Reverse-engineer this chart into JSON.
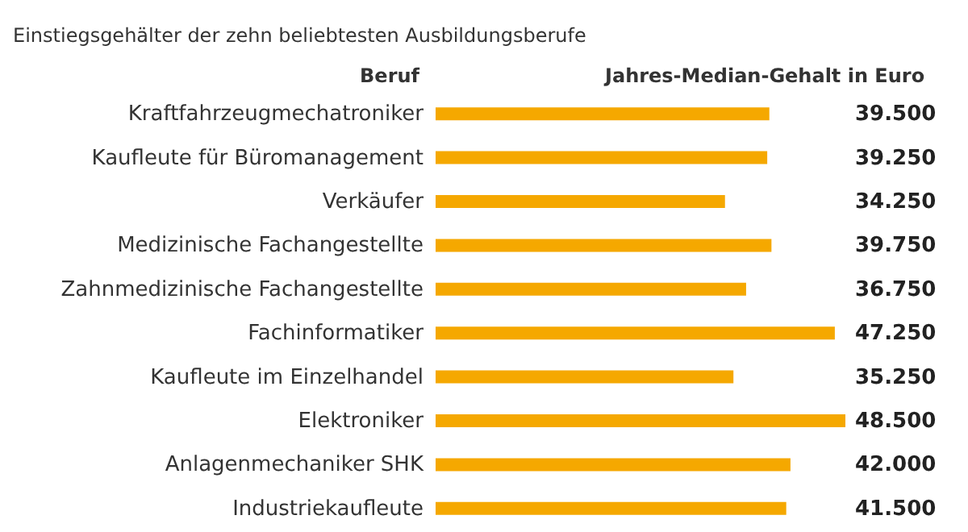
{
  "chart_data": {
    "type": "bar",
    "orientation": "horizontal",
    "subtitle": "Einstiegsgehälter der zehn beliebtesten Ausbildungsberufe",
    "ylabel": "Beruf",
    "xlabel": "Jahres-Median-Gehalt in Euro",
    "categories": [
      "Kraftfahrzeugmechatroniker",
      "Kaufleute für Büromanagement",
      "Verkäufer",
      "Medizinische Fachangestellte",
      "Zahnmedizinische Fachangestellte",
      "Fachinformatiker",
      "Kaufleute im Einzelhandel",
      "Elektroniker",
      "Anlagenmechaniker SHK",
      "Industriekaufleute"
    ],
    "values": [
      39500,
      39250,
      34250,
      39750,
      36750,
      47250,
      35250,
      48500,
      42000,
      41500
    ],
    "value_labels": [
      "39.500",
      "39.250",
      "34.250",
      "39.750",
      "36.750",
      "47.250",
      "35.250",
      "48.500",
      "42.000",
      "41.500"
    ],
    "color": "#f5a800",
    "xlim": [
      0,
      48500
    ],
    "tick_labels": "y"
  }
}
